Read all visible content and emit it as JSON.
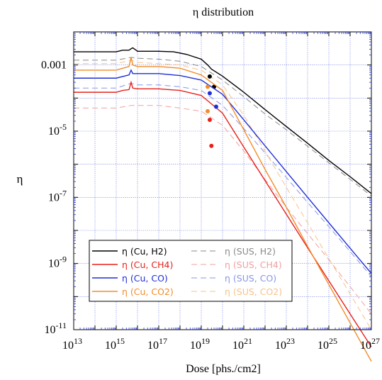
{
  "chart_data": {
    "type": "line",
    "title": "η distribution",
    "xlabel": "Dose [phs./cm2]",
    "ylabel": "η",
    "x_scale": "log",
    "y_scale": "log",
    "xlim": [
      10000000000000.0,
      1e+27
    ],
    "ylim": [
      1e-11,
      0.01
    ],
    "grid": true,
    "legend_position": "bottom-left",
    "x_ticks": [
      {
        "base": "10",
        "exp": "13"
      },
      {
        "base": "10",
        "exp": "15"
      },
      {
        "base": "10",
        "exp": "17"
      },
      {
        "base": "10",
        "exp": "19"
      },
      {
        "base": "10",
        "exp": "21"
      },
      {
        "base": "10",
        "exp": "23"
      },
      {
        "base": "10",
        "exp": "25"
      },
      {
        "base": "10",
        "exp": "27"
      }
    ],
    "y_ticks": [
      {
        "value": 1e-11,
        "base": "10",
        "exp": "-11"
      },
      {
        "value": 1e-09,
        "base": "10",
        "exp": "-9"
      },
      {
        "value": 1e-07,
        "base": "10",
        "exp": "-7"
      },
      {
        "value": 1e-05,
        "base": "10",
        "exp": "-5"
      },
      {
        "value": 0.001,
        "base": "0.001",
        "exp": ""
      }
    ],
    "series": [
      {
        "name": "η (Cu, H2)",
        "color": "#000000",
        "style": "solid",
        "points": [
          [
            10000000000000.0,
            0.0025
          ],
          [
            1000000000000000.0,
            0.0025
          ],
          [
            2000000000000000.0,
            0.0028
          ],
          [
            4000000000000000.0,
            0.0028
          ],
          [
            5000000000000000.0,
            0.0031
          ],
          [
            6000000000000000.0,
            0.0033
          ],
          [
            1e+16,
            0.0026
          ],
          [
            1e+17,
            0.0026
          ],
          [
            5e+17,
            0.0025
          ],
          [
            2e+18,
            0.0021
          ],
          [
            1e+19,
            0.0015
          ],
          [
            2e+19,
            0.001
          ],
          [
            3e+19,
            0.00075
          ],
          [
            1e+20,
            0.00046
          ],
          [
            1e+21,
            0.00015
          ],
          [
            1e+22,
            4.5e-05
          ],
          [
            1e+23,
            1.38e-05
          ],
          [
            1e+24,
            4.3e-06
          ],
          [
            1e+25,
            1.3e-06
          ],
          [
            1e+26,
            4.2e-07
          ],
          [
            1e+27,
            1.3e-07
          ]
        ],
        "markers": [
          [
            2.5e+19,
            0.00045
          ],
          [
            4e+19,
            0.00022
          ]
        ]
      },
      {
        "name": "η (Cu, CH4)",
        "color": "#e8201a",
        "style": "solid",
        "points": [
          [
            10000000000000.0,
            0.00015
          ],
          [
            1000000000000000.0,
            0.00015
          ],
          [
            2000000000000000.0,
            0.00017
          ],
          [
            4000000000000000.0,
            0.00018
          ],
          [
            5000000000000000.0,
            0.0003
          ],
          [
            6000000000000000.0,
            0.0002
          ],
          [
            1e+16,
            0.00019
          ],
          [
            1e+17,
            0.00019
          ],
          [
            1e+18,
            0.00017
          ],
          [
            1e+19,
            0.00012
          ],
          [
            1e+20,
            3.5e-05
          ],
          [
            1e+21,
            3.3e-06
          ],
          [
            1e+22,
            3.2e-07
          ],
          [
            1e+23,
            3.1e-08
          ],
          [
            1e+24,
            3e-09
          ],
          [
            1e+25,
            3e-10
          ],
          [
            1e+26,
            3e-11
          ],
          [
            1e+27,
            3e-12
          ]
        ],
        "markers": [
          [
            2.5e+19,
            2.2e-05
          ],
          [
            3e+19,
            3.6e-06
          ]
        ]
      },
      {
        "name": "η (Cu, CO)",
        "color": "#1f2fd6",
        "style": "solid",
        "points": [
          [
            10000000000000.0,
            0.0004
          ],
          [
            1000000000000000.0,
            0.0004
          ],
          [
            4000000000000000.0,
            0.0005
          ],
          [
            5000000000000000.0,
            0.0007
          ],
          [
            6000000000000000.0,
            0.00055
          ],
          [
            1e+16,
            0.00055
          ],
          [
            1e+17,
            0.00055
          ],
          [
            1e+18,
            0.00048
          ],
          [
            1e+19,
            0.00035
          ],
          [
            1e+20,
            0.00013
          ],
          [
            1e+21,
            2.2e-05
          ],
          [
            1e+22,
            3.6e-06
          ],
          [
            1e+23,
            6e-07
          ],
          [
            1e+24,
            1e-07
          ],
          [
            1e+25,
            1.7e-08
          ],
          [
            1e+26,
            2.9e-09
          ],
          [
            1e+27,
            5e-10
          ]
        ],
        "markers": [
          [
            2.5e+19,
            0.00014
          ],
          [
            5e+19,
            5.5e-05
          ]
        ]
      },
      {
        "name": "η (Cu, CO2)",
        "color": "#f28c28",
        "style": "solid",
        "points": [
          [
            10000000000000.0,
            0.0007
          ],
          [
            1000000000000000.0,
            0.0007
          ],
          [
            4000000000000000.0,
            0.0009
          ],
          [
            5000000000000000.0,
            0.0017
          ],
          [
            6000000000000000.0,
            0.001
          ],
          [
            1e+16,
            0.0009
          ],
          [
            1e+17,
            0.0009
          ],
          [
            1e+18,
            0.0008
          ],
          [
            1e+19,
            0.0005
          ],
          [
            1e+20,
            0.00017
          ],
          [
            1e+21,
            1.1e-05
          ],
          [
            1e+22,
            7e-07
          ],
          [
            1e+23,
            5e-08
          ],
          [
            1e+24,
            3.3e-09
          ],
          [
            1e+25,
            2.3e-10
          ],
          [
            1e+26,
            1.6e-11
          ],
          [
            1e+27,
            1.1e-12
          ]
        ],
        "markers": [
          [
            2e+19,
            0.00022
          ],
          [
            2e+19,
            4e-05
          ]
        ]
      },
      {
        "name": "η (SUS, H2)",
        "color": "#8a8a8a",
        "style": "dashed",
        "points": [
          [
            10000000000000.0,
            0.0014
          ],
          [
            1000000000000000.0,
            0.0014
          ],
          [
            5000000000000000.0,
            0.0017
          ],
          [
            1e+16,
            0.0016
          ],
          [
            1e+17,
            0.0015
          ],
          [
            1e+18,
            0.0013
          ],
          [
            1e+19,
            0.0009
          ],
          [
            1e+20,
            0.00035
          ],
          [
            1e+21,
            0.00011
          ],
          [
            1e+22,
            3.3e-05
          ],
          [
            1e+23,
            1.1e-05
          ],
          [
            1e+24,
            3.5e-06
          ],
          [
            1e+25,
            1.1e-06
          ],
          [
            1e+26,
            3.5e-07
          ],
          [
            1e+27,
            1.1e-07
          ]
        ],
        "markers": []
      },
      {
        "name": "η (SUS, CH4)",
        "color": "#f0a0a0",
        "style": "dashed",
        "points": [
          [
            10000000000000.0,
            5e-05
          ],
          [
            1000000000000000.0,
            5e-05
          ],
          [
            5000000000000000.0,
            6e-05
          ],
          [
            1e+16,
            6e-05
          ],
          [
            1e+17,
            6e-05
          ],
          [
            1e+18,
            5e-05
          ],
          [
            1e+19,
            4e-05
          ],
          [
            1e+20,
            1.5e-05
          ],
          [
            1e+21,
            2.5e-06
          ],
          [
            1e+22,
            3.5e-07
          ],
          [
            1e+23,
            5e-08
          ],
          [
            1e+24,
            8e-09
          ],
          [
            1e+25,
            1.3e-09
          ],
          [
            1e+26,
            2e-10
          ],
          [
            1e+27,
            3e-11
          ]
        ],
        "markers": []
      },
      {
        "name": "η (SUS, CO)",
        "color": "#8a95e8",
        "style": "dashed",
        "points": [
          [
            10000000000000.0,
            0.0002
          ],
          [
            1000000000000000.0,
            0.0002
          ],
          [
            5000000000000000.0,
            0.00028
          ],
          [
            1e+16,
            0.00025
          ],
          [
            1e+17,
            0.00025
          ],
          [
            1e+18,
            0.00022
          ],
          [
            1e+19,
            0.00017
          ],
          [
            1e+20,
            6e-05
          ],
          [
            1e+21,
            1.2e-05
          ],
          [
            1e+22,
            2.2e-06
          ],
          [
            1e+23,
            4e-07
          ],
          [
            1e+24,
            7e-08
          ],
          [
            1e+25,
            1.3e-08
          ],
          [
            1e+26,
            2.3e-09
          ],
          [
            1e+27,
            4e-10
          ]
        ],
        "markers": []
      },
      {
        "name": "η (SUS, CO2)",
        "color": "#f7c28a",
        "style": "dashed",
        "points": [
          [
            10000000000000.0,
            0.0011
          ],
          [
            1000000000000000.0,
            0.0011
          ],
          [
            5000000000000000.0,
            0.0014
          ],
          [
            1e+16,
            0.0012
          ],
          [
            1e+17,
            0.0011
          ],
          [
            1e+18,
            0.001
          ],
          [
            1e+19,
            0.0007
          ],
          [
            1e+20,
            0.00025
          ],
          [
            1e+21,
            3e-05
          ],
          [
            1e+22,
            2.5e-06
          ],
          [
            1e+23,
            2e-07
          ],
          [
            1e+24,
            1.7e-08
          ],
          [
            1e+25,
            1.4e-09
          ],
          [
            1e+26,
            1.2e-10
          ],
          [
            1e+27,
            1e-11
          ]
        ],
        "markers": []
      }
    ]
  }
}
